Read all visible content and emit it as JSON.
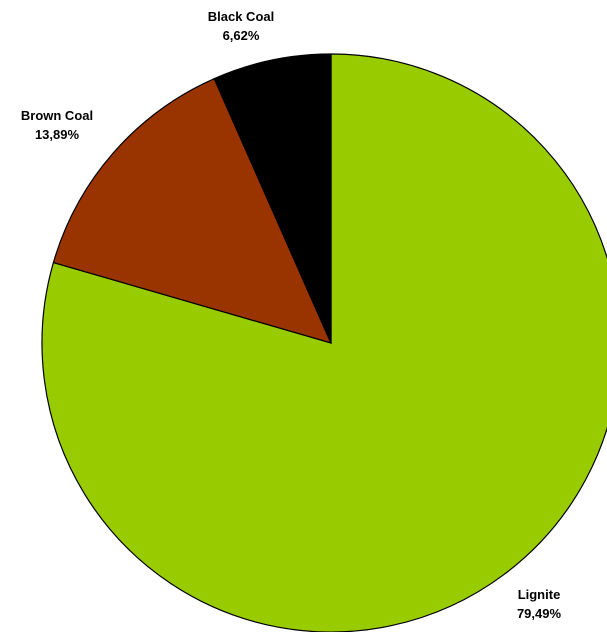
{
  "chart_data": {
    "type": "pie",
    "categories": [
      "Lignite",
      "Brown Coal",
      "Black Coal"
    ],
    "values": [
      79.49,
      13.89,
      6.62
    ],
    "value_labels": [
      "79,49%",
      "13,89%",
      "6,62%"
    ],
    "colors": [
      "#99CC00",
      "#993300",
      "#000000"
    ],
    "start_angle": "12 o'clock",
    "direction": "clockwise",
    "legend": "none"
  }
}
